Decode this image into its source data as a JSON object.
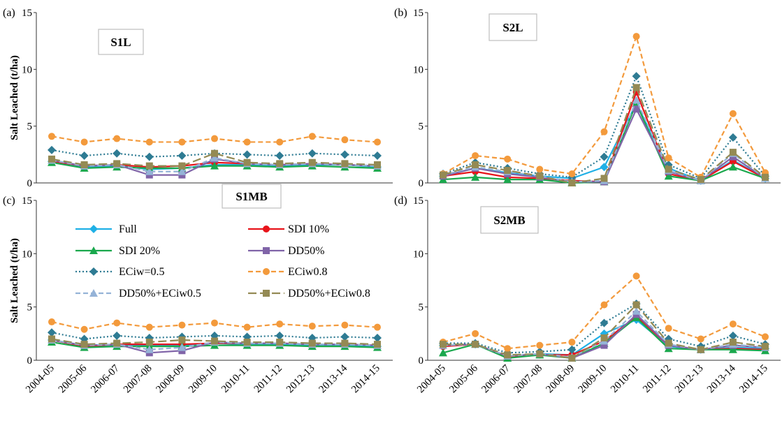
{
  "chart_data": {
    "type": "line",
    "ylabel": "Salt Leached (t/ha)",
    "categories": [
      "2004-05",
      "2005-06",
      "2006-07",
      "2007-08",
      "2008-09",
      "2009-10",
      "2010-11",
      "2011-12",
      "2012-13",
      "2013-14",
      "2014-15"
    ],
    "ylim": [
      0,
      15
    ],
    "yticks": [
      0,
      5,
      10,
      15
    ],
    "grid": false,
    "legend": {
      "placement": "inside-panel-c",
      "entries": [
        {
          "name": "Full",
          "color": "#1fb0e6",
          "dash": "solid",
          "marker": "diamond"
        },
        {
          "name": "SDI 10%",
          "color": "#e8141b",
          "dash": "solid",
          "marker": "circle"
        },
        {
          "name": "SDI 20%",
          "color": "#1aa84d",
          "dash": "solid",
          "marker": "triangle"
        },
        {
          "name": "DD50%",
          "color": "#8064a8",
          "dash": "solid",
          "marker": "square"
        },
        {
          "name": "ECiw=0.5",
          "color": "#2e7b93",
          "dash": "dotted",
          "marker": "diamond"
        },
        {
          "name": "ECiw0.8",
          "color": "#f39a3c",
          "dash": "dashed",
          "marker": "circle"
        },
        {
          "name": "DD50%+ECiw0.5",
          "color": "#95b3d7",
          "dash": "dashed",
          "marker": "triangle"
        },
        {
          "name": "DD50%+ECiw0.8",
          "color": "#948a54",
          "dash": "longdash",
          "marker": "square"
        }
      ]
    },
    "panels": [
      {
        "label": "(a)",
        "title": "S1L",
        "series": [
          {
            "name": "Full",
            "values": [
              1.9,
              1.4,
              1.5,
              1.2,
              1.3,
              1.6,
              1.6,
              1.5,
              1.6,
              1.6,
              1.4
            ]
          },
          {
            "name": "SDI 10%",
            "values": [
              1.9,
              1.5,
              1.6,
              1.4,
              1.5,
              1.8,
              1.7,
              1.6,
              1.7,
              1.6,
              1.5
            ]
          },
          {
            "name": "SDI 20%",
            "values": [
              1.8,
              1.3,
              1.4,
              1.3,
              1.3,
              1.5,
              1.5,
              1.4,
              1.5,
              1.4,
              1.3
            ]
          },
          {
            "name": "DD50%",
            "values": [
              2.0,
              1.5,
              1.6,
              0.7,
              0.7,
              2.1,
              1.7,
              1.6,
              1.7,
              1.6,
              1.5
            ]
          },
          {
            "name": "ECiw=0.5",
            "values": [
              2.9,
              2.4,
              2.6,
              2.3,
              2.4,
              2.6,
              2.5,
              2.4,
              2.6,
              2.5,
              2.4
            ]
          },
          {
            "name": "ECiw0.8",
            "values": [
              4.1,
              3.6,
              3.9,
              3.6,
              3.6,
              3.9,
              3.6,
              3.6,
              4.1,
              3.8,
              3.6
            ]
          },
          {
            "name": "DD50%+ECiw0.5",
            "values": [
              2.0,
              1.5,
              1.6,
              1.0,
              1.0,
              2.2,
              1.7,
              1.6,
              1.7,
              1.6,
              1.5
            ]
          },
          {
            "name": "DD50%+ECiw0.8",
            "values": [
              2.1,
              1.6,
              1.7,
              1.5,
              1.5,
              2.6,
              1.8,
              1.7,
              1.8,
              1.7,
              1.6
            ]
          }
        ]
      },
      {
        "label": "(b)",
        "title": "S2L",
        "series": [
          {
            "name": "Full",
            "values": [
              0.6,
              1.3,
              0.9,
              0.6,
              0.4,
              1.4,
              7.0,
              1.3,
              0.2,
              2.0,
              0.4
            ]
          },
          {
            "name": "SDI 10%",
            "values": [
              0.6,
              1.0,
              0.5,
              0.4,
              0.2,
              0.1,
              8.0,
              0.8,
              0.2,
              1.9,
              0.4
            ]
          },
          {
            "name": "SDI 20%",
            "values": [
              0.3,
              0.5,
              0.3,
              0.3,
              0.0,
              0.1,
              7.0,
              0.6,
              0.2,
              1.4,
              0.4
            ]
          },
          {
            "name": "DD50%",
            "values": [
              0.6,
              1.3,
              0.8,
              0.5,
              0.1,
              0.1,
              6.5,
              1.0,
              0.2,
              2.3,
              0.4
            ]
          },
          {
            "name": "ECiw=0.5",
            "values": [
              0.8,
              1.8,
              1.3,
              0.8,
              0.5,
              2.3,
              9.4,
              1.6,
              0.4,
              4.0,
              0.6
            ]
          },
          {
            "name": "ECiw0.8",
            "values": [
              0.8,
              2.4,
              2.1,
              1.2,
              0.8,
              4.5,
              12.9,
              2.2,
              0.5,
              6.1,
              0.9
            ]
          },
          {
            "name": "DD50%+ECiw0.5",
            "values": [
              0.7,
              1.4,
              1.0,
              0.6,
              0.1,
              0.2,
              7.3,
              1.1,
              0.2,
              2.6,
              0.4
            ]
          },
          {
            "name": "DD50%+ECiw0.8",
            "values": [
              0.7,
              1.6,
              1.1,
              0.6,
              0.0,
              0.4,
              8.4,
              1.2,
              0.3,
              2.7,
              0.5
            ]
          }
        ]
      },
      {
        "label": "(c)",
        "title": "S1MB",
        "series": [
          {
            "name": "Full",
            "values": [
              1.9,
              1.3,
              1.4,
              1.4,
              1.4,
              1.6,
              1.5,
              1.5,
              1.4,
              1.4,
              1.3
            ]
          },
          {
            "name": "SDI 10%",
            "values": [
              1.9,
              1.3,
              1.5,
              1.5,
              1.5,
              1.6,
              1.6,
              1.6,
              1.5,
              1.5,
              1.4
            ]
          },
          {
            "name": "SDI 20%",
            "values": [
              1.7,
              1.2,
              1.3,
              1.3,
              1.3,
              1.4,
              1.4,
              1.4,
              1.3,
              1.3,
              1.2
            ]
          },
          {
            "name": "DD50%",
            "values": [
              1.9,
              1.4,
              1.5,
              0.7,
              0.9,
              1.7,
              1.6,
              1.6,
              1.5,
              1.5,
              1.4
            ]
          },
          {
            "name": "ECiw=0.5",
            "values": [
              2.6,
              2.0,
              2.3,
              2.1,
              2.2,
              2.3,
              2.2,
              2.3,
              2.1,
              2.2,
              2.1
            ]
          },
          {
            "name": "ECiw0.8",
            "values": [
              3.6,
              2.9,
              3.5,
              3.1,
              3.3,
              3.5,
              3.1,
              3.4,
              3.2,
              3.3,
              3.1
            ]
          },
          {
            "name": "DD50%+ECiw0.5",
            "values": [
              1.9,
              1.4,
              1.5,
              1.0,
              1.2,
              1.7,
              1.6,
              1.6,
              1.5,
              1.5,
              1.4
            ]
          },
          {
            "name": "DD50%+ECiw0.8",
            "values": [
              2.0,
              1.5,
              1.6,
              1.7,
              1.9,
              1.8,
              1.7,
              1.7,
              1.6,
              1.6,
              1.5
            ]
          }
        ]
      },
      {
        "label": "(d)",
        "title": "S2MB",
        "series": [
          {
            "name": "Full",
            "values": [
              1.4,
              1.5,
              0.3,
              0.6,
              0.5,
              2.5,
              3.8,
              1.3,
              1.0,
              1.2,
              1.1
            ]
          },
          {
            "name": "SDI 10%",
            "values": [
              1.3,
              1.5,
              0.3,
              0.5,
              0.5,
              1.8,
              4.1,
              1.4,
              1.0,
              1.1,
              1.0
            ]
          },
          {
            "name": "SDI 20%",
            "values": [
              0.7,
              1.5,
              0.2,
              0.5,
              0.2,
              1.6,
              4.0,
              1.1,
              1.0,
              1.0,
              0.9
            ]
          },
          {
            "name": "DD50%",
            "values": [
              1.4,
              1.5,
              0.4,
              0.6,
              0.2,
              1.4,
              4.3,
              1.4,
              1.0,
              1.4,
              1.2
            ]
          },
          {
            "name": "ECiw=0.5",
            "values": [
              1.6,
              1.6,
              0.7,
              0.8,
              1.0,
              3.5,
              5.3,
              2.0,
              1.3,
              2.3,
              1.5
            ]
          },
          {
            "name": "ECiw0.8",
            "values": [
              1.7,
              2.5,
              1.1,
              1.4,
              1.7,
              5.2,
              7.9,
              3.0,
              2.0,
              3.4,
              2.2
            ]
          },
          {
            "name": "DD50%+ECiw0.5",
            "values": [
              1.4,
              1.5,
              0.4,
              0.6,
              0.3,
              1.8,
              4.6,
              1.5,
              1.0,
              1.5,
              1.2
            ]
          },
          {
            "name": "DD50%+ECiw0.8",
            "values": [
              1.5,
              1.5,
              0.5,
              0.6,
              0.2,
              2.1,
              5.2,
              1.6,
              1.0,
              1.7,
              1.3
            ]
          }
        ]
      }
    ]
  }
}
